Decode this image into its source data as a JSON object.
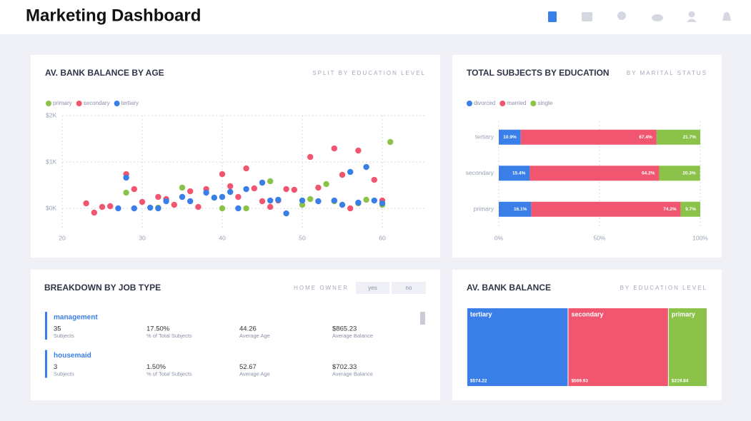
{
  "header": {
    "title": "Marketing Dashboard"
  },
  "chart_data": [
    {
      "type": "scatter",
      "title": "AV. BANK BALANCE BY AGE",
      "subtitle": "SPLIT BY EDUCATION LEVEL",
      "xlim": [
        20,
        64
      ],
      "xticks": [
        20,
        30,
        40,
        50,
        60
      ],
      "ylim": [
        -600,
        2000
      ],
      "yticks": [
        {
          "value": 0,
          "label": "$0K"
        },
        {
          "value": 1000,
          "label": "$1K"
        },
        {
          "value": 2000,
          "label": "$2K"
        }
      ],
      "grid": true,
      "legend": "top-left",
      "series": [
        {
          "name": "primary",
          "color": "#8bc34a",
          "x": [
            28,
            35,
            40,
            43,
            46,
            50,
            51,
            53,
            54,
            57,
            58,
            61,
            60,
            32
          ],
          "values": [
            338,
            446,
            0,
            0,
            585,
            77,
            200,
            523,
            154,
            108,
            185,
            1431,
            77,
            15
          ]
        },
        {
          "name": "secondary",
          "color": "#f0566f",
          "x": [
            23,
            24,
            25,
            26,
            28,
            29,
            30,
            32,
            33,
            34,
            36,
            37,
            38,
            40,
            41,
            42,
            43,
            44,
            45,
            46,
            47,
            48,
            49,
            51,
            52,
            54,
            55,
            56,
            57,
            59,
            60
          ],
          "values": [
            108,
            -92,
            31,
            46,
            738,
            415,
            138,
            246,
            200,
            77,
            369,
            31,
            415,
            738,
            477,
            246,
            862,
            431,
            154,
            31,
            169,
            415,
            400,
            1108,
            446,
            1292,
            723,
            0,
            1246,
            615,
            169
          ]
        },
        {
          "name": "tertiary",
          "color": "#3a7ee8",
          "x": [
            28,
            29,
            27,
            31,
            32,
            33,
            35,
            36,
            38,
            39,
            40,
            41,
            42,
            43,
            45,
            46,
            47,
            48,
            50,
            52,
            54,
            55,
            56,
            57,
            58,
            59,
            60
          ],
          "values": [
            662,
            0,
            0,
            15,
            0,
            154,
            246,
            154,
            338,
            231,
            246,
            354,
            0,
            415,
            554,
            169,
            185,
            -108,
            169,
            154,
            169,
            77,
            785,
            123,
            892,
            169,
            108
          ]
        }
      ]
    },
    {
      "type": "bar",
      "orientation": "horizontal",
      "stacked": true,
      "title": "TOTAL SUBJECTS BY EDUCATION",
      "subtitle": "BY MARITAL STATUS",
      "categories": [
        "tertiary",
        "secondary",
        "primary"
      ],
      "xlim": [
        0,
        100
      ],
      "xticks": [
        {
          "value": 0,
          "label": "0%"
        },
        {
          "value": 50,
          "label": "50%"
        },
        {
          "value": 100,
          "label": "100%"
        }
      ],
      "grid": true,
      "legend": "top-left",
      "series": [
        {
          "name": "divorced",
          "color": "#3a7ee8",
          "values": [
            10.9,
            15.4,
            16.1
          ],
          "value_labels": [
            "10.9%",
            "15.4%",
            "16.1%"
          ]
        },
        {
          "name": "married",
          "color": "#f0566f",
          "values": [
            67.4,
            64.2,
            74.2
          ],
          "value_labels": [
            "67.4%",
            "64.2%",
            "74.2%"
          ]
        },
        {
          "name": "single",
          "color": "#8bc34a",
          "values": [
            21.7,
            20.3,
            9.7
          ],
          "value_labels": [
            "21.7%",
            "20.3%",
            "9.7%"
          ]
        }
      ]
    },
    {
      "type": "treemap",
      "title": "AV. BANK BALANCE",
      "subtitle": "BY EDUCATION LEVEL",
      "categories": [
        "tertiary",
        "secondary",
        "primary"
      ],
      "values": [
        574.22,
        569.93,
        219.84
      ],
      "value_labels": [
        "$574.22",
        "$569.93",
        "$219.84"
      ],
      "colors": [
        "#3a7ee8",
        "#f0566f",
        "#8bc34a"
      ]
    }
  ],
  "job_panel": {
    "title": "BREAKDOWN BY JOB TYPE",
    "filter_label": "HOME OWNER",
    "filter_options": [
      "yes",
      "no"
    ],
    "items": [
      {
        "name": "management",
        "stats": [
          {
            "value": "35",
            "label": "Subjects"
          },
          {
            "value": "17.50%",
            "label": "% of Total Subjects"
          },
          {
            "value": "44.26",
            "label": "Average Age"
          },
          {
            "value": "$865.23",
            "label": "Average Balance"
          }
        ]
      },
      {
        "name": "housemaid",
        "stats": [
          {
            "value": "3",
            "label": "Subjects"
          },
          {
            "value": "1.50%",
            "label": "% of Total Subjects"
          },
          {
            "value": "52.67",
            "label": "Average Age"
          },
          {
            "value": "$702.33",
            "label": "Average Balance"
          }
        ]
      }
    ]
  }
}
